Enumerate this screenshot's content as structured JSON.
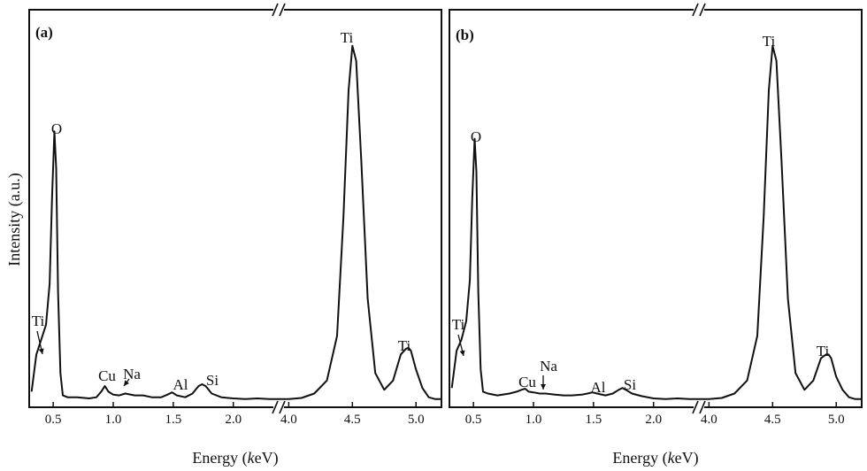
{
  "figure": {
    "ylabel": "Intensity (a.u.)",
    "xlabel_prefix": "Energy (",
    "xlabel_italic": "k",
    "xlabel_suffix": "eV)"
  },
  "chart_data": [
    {
      "type": "line",
      "panel_label": "(a)",
      "xlabel": "Energy (keV)",
      "ylabel": "Intensity (a.u.)",
      "broken_x_axis": true,
      "segments": [
        {
          "xlim": [
            0.3,
            2.4
          ],
          "xticks": [
            "0.5",
            "1.0",
            "1.5",
            "2.0"
          ]
        },
        {
          "xlim": [
            3.9,
            5.2
          ],
          "xticks": [
            "4.0",
            "4.5",
            "5.0"
          ]
        }
      ],
      "ylim": [
        0,
        100
      ],
      "series": [
        {
          "x": [
            0.32,
            0.36,
            0.4,
            0.44,
            0.47,
            0.49,
            0.51,
            0.525,
            0.54,
            0.56,
            0.58,
            0.62,
            0.7,
            0.8,
            0.86,
            0.9,
            0.93,
            0.96,
            1.0,
            1.05,
            1.1,
            1.18,
            1.25,
            1.32,
            1.4,
            1.45,
            1.49,
            1.53,
            1.6,
            1.66,
            1.71,
            1.74,
            1.77,
            1.82,
            1.9,
            2.0,
            2.1,
            2.2,
            2.3,
            2.4,
            3.9,
            4.0,
            4.1,
            4.2,
            4.3,
            4.38,
            4.43,
            4.47,
            4.5,
            4.53,
            4.57,
            4.62,
            4.68,
            4.75,
            4.82,
            4.88,
            4.92,
            4.94,
            4.96,
            5.0,
            5.05,
            5.1,
            5.15,
            5.2
          ],
          "y": [
            3,
            13,
            17,
            21,
            32,
            55,
            73,
            63,
            30,
            8,
            2,
            1.5,
            1.5,
            1.2,
            1.5,
            3,
            4.5,
            3,
            2.2,
            2,
            2.5,
            2,
            2,
            1.5,
            1.5,
            2.2,
            2.8,
            2,
            1.5,
            2.5,
            4.5,
            5,
            4.5,
            2.5,
            1.5,
            1.2,
            1,
            1.2,
            1,
            1,
            1,
            1,
            1.3,
            2.5,
            6,
            18,
            50,
            84,
            96,
            92,
            65,
            28,
            8,
            3.5,
            6,
            13,
            14.5,
            14.8,
            14,
            9,
            4,
            1.5,
            1,
            1
          ]
        }
      ],
      "annotations": [
        "Ti",
        "O",
        "Cu",
        "Na",
        "Al",
        "Si",
        "Ti",
        "Ti"
      ]
    },
    {
      "type": "line",
      "panel_label": "(b)",
      "xlabel": "Energy (keV)",
      "ylabel": "",
      "broken_x_axis": true,
      "segments": [
        {
          "xlim": [
            0.3,
            2.4
          ],
          "xticks": [
            "0.5",
            "1.0",
            "1.5",
            "2.0"
          ]
        },
        {
          "xlim": [
            3.9,
            5.2
          ],
          "xticks": [
            "4.0",
            "4.5",
            "5.0"
          ]
        }
      ],
      "ylim": [
        0,
        100
      ],
      "series": [
        {
          "x": [
            0.32,
            0.36,
            0.4,
            0.44,
            0.47,
            0.49,
            0.51,
            0.525,
            0.54,
            0.56,
            0.58,
            0.62,
            0.7,
            0.8,
            0.86,
            0.9,
            0.93,
            0.96,
            1.0,
            1.05,
            1.1,
            1.18,
            1.25,
            1.32,
            1.4,
            1.45,
            1.49,
            1.53,
            1.6,
            1.66,
            1.71,
            1.74,
            1.77,
            1.82,
            1.9,
            2.0,
            2.1,
            2.2,
            2.3,
            2.4,
            3.9,
            4.0,
            4.1,
            4.2,
            4.3,
            4.38,
            4.43,
            4.47,
            4.5,
            4.53,
            4.57,
            4.62,
            4.68,
            4.75,
            4.82,
            4.88,
            4.92,
            4.94,
            4.96,
            5.0,
            5.05,
            5.1,
            5.15,
            5.2
          ],
          "y": [
            4,
            14,
            17,
            22,
            33,
            55,
            71,
            62,
            30,
            9,
            3,
            2.5,
            2,
            2.5,
            3,
            3.5,
            3.8,
            3,
            2.8,
            2.5,
            2.5,
            2.2,
            2,
            2,
            2.2,
            2.5,
            2.8,
            2.5,
            2,
            2.5,
            3.5,
            4,
            3.5,
            2.5,
            1.8,
            1.2,
            1,
            1.2,
            1,
            1,
            1,
            1,
            1.3,
            2.5,
            6,
            18,
            50,
            84,
            96,
            92,
            65,
            28,
            8,
            3.5,
            6,
            12,
            13,
            13,
            12,
            7,
            3.5,
            1.5,
            1,
            1
          ]
        }
      ],
      "annotations": [
        "Ti",
        "O",
        "Cu",
        "Na",
        "Al",
        "Si",
        "Ti",
        "Ti"
      ]
    }
  ]
}
